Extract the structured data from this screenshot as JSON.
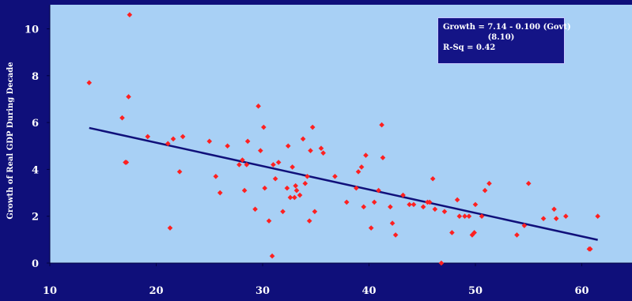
{
  "chart_data": {
    "type": "scatter",
    "title": "",
    "xlabel": "",
    "ylabel": "Growth of Real GDP During Decade",
    "xlim": [
      10,
      65
    ],
    "ylim": [
      0,
      11
    ],
    "x_ticks": [
      10,
      20,
      30,
      40,
      50,
      60
    ],
    "y_ticks": [
      0,
      2,
      4,
      6,
      8,
      10
    ],
    "grid": false,
    "legend": "none",
    "colors": {
      "background": "#0f0f7a",
      "plot_area": "#a8d0f5",
      "points": "#ff2020",
      "trendline": "#10107a",
      "text": "#ffffff"
    },
    "annotation": {
      "line1": "Growth = 7.14 - 0.100 (Govt)",
      "line2": "(8.10)",
      "line3": "R-Sq = 0.42"
    },
    "trendline": {
      "intercept": 7.14,
      "slope": -0.1,
      "x_range": [
        13.7,
        61.5
      ]
    },
    "points": [
      {
        "x": 13.7,
        "y": 7.7
      },
      {
        "x": 16.8,
        "y": 6.2
      },
      {
        "x": 17.1,
        "y": 4.3
      },
      {
        "x": 17.2,
        "y": 4.3
      },
      {
        "x": 17.4,
        "y": 7.1
      },
      {
        "x": 17.5,
        "y": 10.6
      },
      {
        "x": 19.2,
        "y": 5.4
      },
      {
        "x": 21.1,
        "y": 5.1
      },
      {
        "x": 21.3,
        "y": 1.5
      },
      {
        "x": 21.6,
        "y": 5.3
      },
      {
        "x": 22.2,
        "y": 3.9
      },
      {
        "x": 22.5,
        "y": 5.4
      },
      {
        "x": 25.0,
        "y": 5.2
      },
      {
        "x": 25.6,
        "y": 3.7
      },
      {
        "x": 26.0,
        "y": 3.0
      },
      {
        "x": 26.7,
        "y": 5.0
      },
      {
        "x": 27.8,
        "y": 4.2
      },
      {
        "x": 28.1,
        "y": 4.4
      },
      {
        "x": 28.3,
        "y": 3.1
      },
      {
        "x": 28.5,
        "y": 4.2
      },
      {
        "x": 28.6,
        "y": 5.2
      },
      {
        "x": 29.3,
        "y": 2.3
      },
      {
        "x": 29.6,
        "y": 6.7
      },
      {
        "x": 29.8,
        "y": 4.8
      },
      {
        "x": 30.1,
        "y": 5.8
      },
      {
        "x": 30.2,
        "y": 3.2
      },
      {
        "x": 30.6,
        "y": 1.8
      },
      {
        "x": 30.9,
        "y": 0.3
      },
      {
        "x": 31.0,
        "y": 4.2
      },
      {
        "x": 31.2,
        "y": 3.6
      },
      {
        "x": 31.5,
        "y": 4.3
      },
      {
        "x": 31.9,
        "y": 2.2
      },
      {
        "x": 32.3,
        "y": 3.2
      },
      {
        "x": 32.4,
        "y": 5.0
      },
      {
        "x": 32.6,
        "y": 2.8
      },
      {
        "x": 32.8,
        "y": 4.1
      },
      {
        "x": 33.0,
        "y": 2.8
      },
      {
        "x": 33.1,
        "y": 3.3
      },
      {
        "x": 33.2,
        "y": 3.1
      },
      {
        "x": 33.5,
        "y": 2.9
      },
      {
        "x": 33.8,
        "y": 5.3
      },
      {
        "x": 34.0,
        "y": 3.4
      },
      {
        "x": 34.2,
        "y": 3.7
      },
      {
        "x": 34.4,
        "y": 1.8
      },
      {
        "x": 34.5,
        "y": 4.8
      },
      {
        "x": 34.7,
        "y": 5.8
      },
      {
        "x": 34.9,
        "y": 2.2
      },
      {
        "x": 35.5,
        "y": 4.9
      },
      {
        "x": 35.7,
        "y": 4.7
      },
      {
        "x": 36.8,
        "y": 3.7
      },
      {
        "x": 37.9,
        "y": 2.6
      },
      {
        "x": 38.8,
        "y": 3.2
      },
      {
        "x": 39.0,
        "y": 3.9
      },
      {
        "x": 39.3,
        "y": 4.1
      },
      {
        "x": 39.5,
        "y": 2.4
      },
      {
        "x": 39.7,
        "y": 4.6
      },
      {
        "x": 40.2,
        "y": 1.5
      },
      {
        "x": 40.5,
        "y": 2.6
      },
      {
        "x": 40.9,
        "y": 3.1
      },
      {
        "x": 41.2,
        "y": 5.9
      },
      {
        "x": 41.3,
        "y": 4.5
      },
      {
        "x": 42.0,
        "y": 2.4
      },
      {
        "x": 42.2,
        "y": 1.7
      },
      {
        "x": 42.5,
        "y": 1.2
      },
      {
        "x": 43.2,
        "y": 2.9
      },
      {
        "x": 43.8,
        "y": 2.5
      },
      {
        "x": 44.2,
        "y": 2.5
      },
      {
        "x": 45.1,
        "y": 2.4
      },
      {
        "x": 45.5,
        "y": 2.6
      },
      {
        "x": 45.7,
        "y": 2.6
      },
      {
        "x": 46.0,
        "y": 3.6
      },
      {
        "x": 46.2,
        "y": 2.3
      },
      {
        "x": 46.8,
        "y": 0.0
      },
      {
        "x": 47.1,
        "y": 2.2
      },
      {
        "x": 47.8,
        "y": 1.3
      },
      {
        "x": 48.3,
        "y": 2.7
      },
      {
        "x": 48.5,
        "y": 2.0
      },
      {
        "x": 49.0,
        "y": 2.0
      },
      {
        "x": 49.4,
        "y": 2.0
      },
      {
        "x": 49.7,
        "y": 1.2
      },
      {
        "x": 49.9,
        "y": 1.3
      },
      {
        "x": 50.0,
        "y": 2.5
      },
      {
        "x": 50.6,
        "y": 2.0
      },
      {
        "x": 50.9,
        "y": 3.1
      },
      {
        "x": 51.3,
        "y": 3.4
      },
      {
        "x": 53.9,
        "y": 1.2
      },
      {
        "x": 54.6,
        "y": 1.6
      },
      {
        "x": 55.0,
        "y": 3.4
      },
      {
        "x": 56.4,
        "y": 1.9
      },
      {
        "x": 57.4,
        "y": 2.3
      },
      {
        "x": 57.6,
        "y": 1.9
      },
      {
        "x": 58.5,
        "y": 2.0
      },
      {
        "x": 60.7,
        "y": 0.6
      },
      {
        "x": 60.8,
        "y": 0.6
      },
      {
        "x": 61.5,
        "y": 2.0
      }
    ]
  }
}
